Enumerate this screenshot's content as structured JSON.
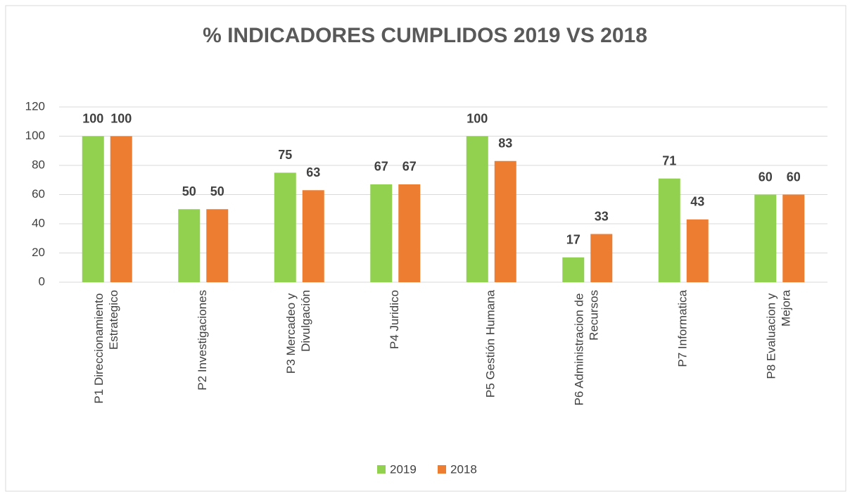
{
  "chart_data": {
    "type": "bar",
    "title": "% INDICADORES CUMPLIDOS 2019 VS 2018",
    "categories": [
      "P1 Direccionamiento Estrategico",
      "P2 Investigaciones",
      "P3 Mercadeo y Divulgación",
      "P4 Juridico",
      "P5 Gestión Humana",
      "P6 Administracion de Recursos",
      "P7 Informatica",
      "P8 Evaluacion y Mejora"
    ],
    "series": [
      {
        "name": "2019",
        "color": "#92d050",
        "values": [
          100,
          50,
          75,
          67,
          100,
          17,
          71,
          60
        ]
      },
      {
        "name": "2018",
        "color": "#ed7d31",
        "values": [
          100,
          50,
          63,
          67,
          83,
          33,
          43,
          60
        ]
      }
    ],
    "ylim": [
      0,
      120
    ],
    "yticks": [
      0,
      20,
      40,
      60,
      80,
      100,
      120
    ],
    "grid": true,
    "legend": "bottom"
  }
}
